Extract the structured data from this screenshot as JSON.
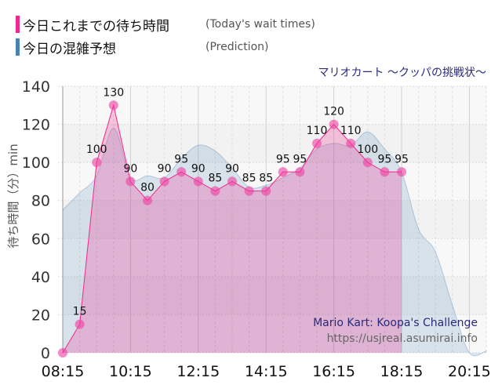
{
  "legend": [
    {
      "label": "今日これまでの待ち時間",
      "sublabel": "(Today's wait times)",
      "color": "#f0288c"
    },
    {
      "label": "今日の混雑予想",
      "sublabel": "(Prediction)",
      "color": "#4682b4"
    }
  ],
  "chart_data": {
    "type": "area",
    "title": "マリオカート ～クッパの挑戦状～",
    "ylabel": "待ち時間（分）min",
    "xlabel": "",
    "ylim": [
      0,
      140
    ],
    "yticks": [
      "0",
      "20",
      "40",
      "60",
      "80",
      "100",
      "120",
      "140"
    ],
    "xticks": [
      "08:15",
      "10:15",
      "12:15",
      "14:15",
      "16:15",
      "18:15",
      "20:15"
    ],
    "grid": true,
    "watermark": [
      "Mario Kart: Koopa's Challenge",
      "https://usjreal.asumirai.info"
    ],
    "series": [
      {
        "name": "今日これまでの待ち時間",
        "color": "#f0288c",
        "x": [
          "08:15",
          "08:45",
          "09:15",
          "09:45",
          "10:15",
          "10:45",
          "11:15",
          "11:45",
          "12:15",
          "12:45",
          "13:15",
          "13:45",
          "14:15",
          "14:45",
          "15:15",
          "15:45",
          "16:15",
          "16:45",
          "17:15",
          "17:45",
          "18:15"
        ],
        "values": [
          0,
          15,
          100,
          130,
          90,
          80,
          90,
          95,
          90,
          85,
          90,
          85,
          85,
          95,
          95,
          110,
          120,
          110,
          100,
          95,
          95
        ]
      },
      {
        "name": "今日の混雑予想",
        "color": "#4682b4",
        "x": [
          "08:15",
          "08:45",
          "09:15",
          "09:45",
          "10:15",
          "10:45",
          "11:15",
          "11:45",
          "12:15",
          "12:45",
          "13:15",
          "13:45",
          "14:15",
          "14:45",
          "15:15",
          "15:45",
          "16:15",
          "16:45",
          "17:15",
          "17:45",
          "18:15",
          "18:45",
          "19:15",
          "19:45",
          "20:15",
          "20:45"
        ],
        "values": [
          75,
          84,
          93,
          118,
          92,
          93,
          92,
          102,
          109,
          106,
          97,
          87,
          88,
          92,
          97,
          107,
          110,
          109,
          116,
          107,
          95,
          65,
          53,
          25,
          0,
          1
        ]
      }
    ]
  }
}
